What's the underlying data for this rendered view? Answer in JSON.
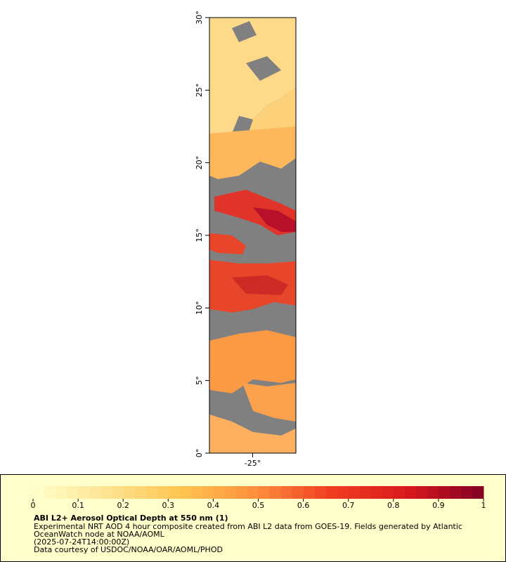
{
  "map": {
    "xlim": [
      -28,
      -22
    ],
    "ylim": [
      0,
      30
    ],
    "xticks": [
      {
        "value": -25,
        "label": "-25°"
      }
    ],
    "yticks": [
      {
        "value": 0,
        "label": "0°"
      },
      {
        "value": 5,
        "label": "5°"
      },
      {
        "value": 10,
        "label": "10°"
      },
      {
        "value": 15,
        "label": "15°"
      },
      {
        "value": 20,
        "label": "20°"
      },
      {
        "value": 25,
        "label": "25°"
      },
      {
        "value": 30,
        "label": "30°"
      }
    ]
  },
  "colorbar": {
    "lim": [
      0,
      1
    ],
    "ticks": [
      0,
      0.1,
      0.2,
      0.3,
      0.4,
      0.5,
      0.6,
      0.7,
      0.8,
      0.9,
      1
    ],
    "colors": [
      "#ffffcc",
      "#fee391",
      "#fec44f",
      "#fd8d3c",
      "#f03b20",
      "#d7191c",
      "#800026"
    ]
  },
  "legend": {
    "title": "ABI L2+ Aerosol Optical Depth at 550 nm (1)",
    "lines": [
      "Experimental NRT AOD 4 hour composite created from ABI L2 data from GOES-19. Fields generated by Atlantic",
      "OceanWatch node at NOAA/AOML",
      "(2025-07-24T14:00:00Z)",
      "Data courtesy of USDOC/NOAA/OAR/AOML/PHOD"
    ]
  }
}
